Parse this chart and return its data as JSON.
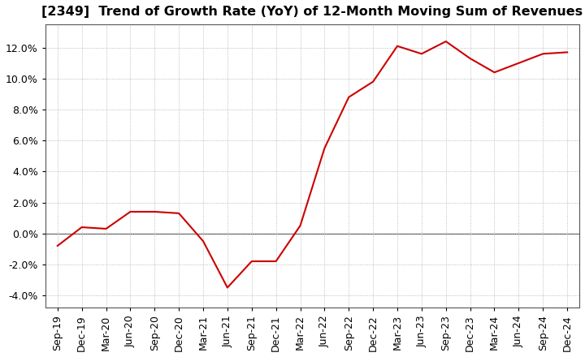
{
  "title": "[2349]  Trend of Growth Rate (YoY) of 12-Month Moving Sum of Revenues",
  "x_labels": [
    "Sep-19",
    "Dec-19",
    "Mar-20",
    "Jun-20",
    "Sep-20",
    "Dec-20",
    "Mar-21",
    "Jun-21",
    "Sep-21",
    "Dec-21",
    "Mar-22",
    "Jun-22",
    "Sep-22",
    "Dec-22",
    "Mar-23",
    "Jun-23",
    "Sep-23",
    "Dec-23",
    "Mar-24",
    "Jun-24",
    "Sep-24",
    "Dec-24"
  ],
  "y_values": [
    -0.008,
    0.004,
    0.003,
    0.014,
    0.014,
    0.013,
    -0.005,
    -0.035,
    -0.018,
    -0.018,
    0.005,
    0.055,
    0.088,
    0.098,
    0.121,
    0.116,
    0.124,
    0.113,
    0.104,
    0.11,
    0.116,
    0.117
  ],
  "line_color": "#cc0000",
  "background_color": "#ffffff",
  "plot_bg_color": "#ffffff",
  "grid_color": "#aaaaaa",
  "ylim": [
    -0.048,
    0.135
  ],
  "yticks": [
    -0.04,
    -0.02,
    0.0,
    0.02,
    0.04,
    0.06,
    0.08,
    0.1,
    0.12
  ],
  "zero_line_color": "#555555",
  "title_fontsize": 11.5,
  "tick_fontsize": 9,
  "spine_color": "#555555"
}
